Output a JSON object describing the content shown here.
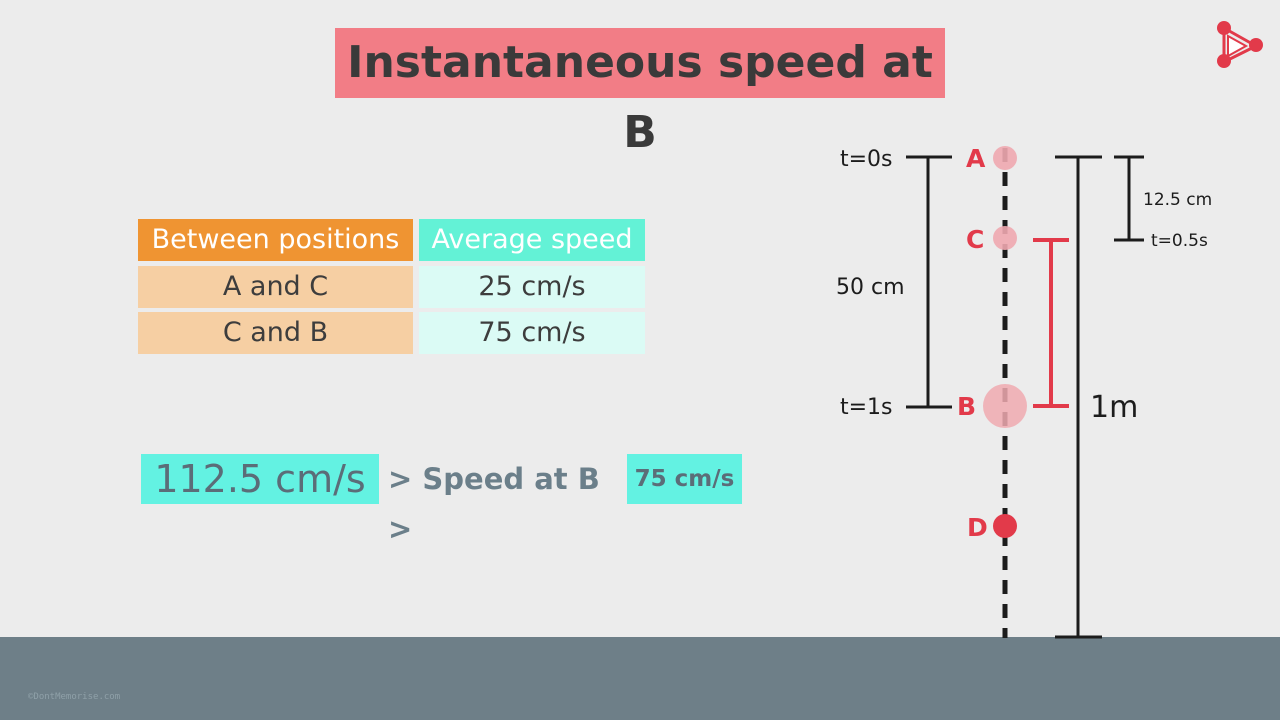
{
  "title": "Instantaneous speed at B",
  "table": {
    "headers": [
      "Between positions",
      "Average speed"
    ],
    "rows": [
      [
        "A and C",
        "25 cm/s"
      ],
      [
        "C and B",
        "75 cm/s"
      ]
    ]
  },
  "inequality": {
    "upper": "112.5 cm/s",
    "middle": "> Speed at B >",
    "lower": "75 cm/s"
  },
  "diagram": {
    "points": [
      "A",
      "C",
      "B",
      "D"
    ],
    "time_labels": {
      "t0": "t=0s",
      "t1": "t=1s",
      "t_half": "t=0.5s"
    },
    "distances": {
      "ab": "50 cm",
      "ac": "12.5 cm",
      "total": "1m"
    }
  },
  "footer": {
    "copyright": "©DontMemorise.com"
  },
  "colors": {
    "title_bg": "#f27d86",
    "header_orange": "#ef9432",
    "header_cyan": "#63f2d6",
    "row_orange": "#f6cfa3",
    "row_cyan": "#dbfbf5",
    "highlight_cyan": "#63f2e2",
    "accent_red": "#e23a4a",
    "ground": "#6e7f88"
  }
}
